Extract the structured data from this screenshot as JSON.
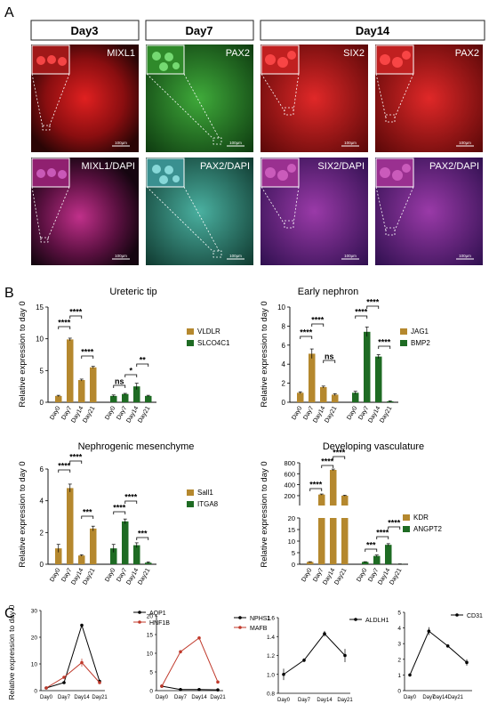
{
  "panel_letters": {
    "a": "A",
    "b": "B",
    "c": "C"
  },
  "colors": {
    "tan": "#b5882e",
    "green": "#1e6b23",
    "black": "#000000",
    "red": "#c0392b"
  },
  "panel_a": {
    "headers": [
      "Day3",
      "Day7",
      "Day14"
    ],
    "tiles": [
      {
        "label": "MIXL1",
        "scale": "100μm"
      },
      {
        "label": "PAX2",
        "scale": "100μm"
      },
      {
        "label": "SIX2",
        "scale": "100μm"
      },
      {
        "label": "PAX2",
        "scale": "100μm"
      },
      {
        "label": "MIXL1/DAPI",
        "scale": "100μm"
      },
      {
        "label": "PAX2/DAPI",
        "scale": "100μm"
      },
      {
        "label": "SIX2/DAPI",
        "scale": "100μm"
      },
      {
        "label": "PAX2/DAPI",
        "scale": "100μm"
      }
    ]
  },
  "chart_data": [
    {
      "type": "bar",
      "title": "Ureteric tip",
      "ylabel": "Relative expression to day 0",
      "ylim": [
        0,
        15
      ],
      "yticks": [
        "0",
        "5",
        "10",
        "15"
      ],
      "categories": [
        "Day0",
        "Day7",
        "Day14",
        "Day21"
      ],
      "series": [
        {
          "name": "VLDLR",
          "color": "#b5882e",
          "values": [
            1.0,
            9.9,
            3.5,
            5.5
          ],
          "errors": [
            0.1,
            0.2,
            0.15,
            0.15
          ]
        },
        {
          "name": "SLCO4C1",
          "color": "#1e6b23",
          "values": [
            1.0,
            1.3,
            2.5,
            1.0
          ],
          "errors": [
            0.15,
            0.1,
            0.5,
            0.1
          ]
        }
      ],
      "significance": [
        "****",
        "****",
        "****",
        "****",
        "ns",
        "*",
        "**"
      ]
    },
    {
      "type": "bar",
      "title": "Early nephron",
      "ylabel": "Relative expression to day 0",
      "ylim": [
        0,
        10
      ],
      "yticks": [
        "0",
        "2",
        "4",
        "6",
        "8",
        "10"
      ],
      "categories": [
        "Day0",
        "Day7",
        "Day14",
        "Day21"
      ],
      "series": [
        {
          "name": "JAG1",
          "color": "#b5882e",
          "values": [
            1.0,
            5.1,
            1.6,
            0.8
          ],
          "errors": [
            0.1,
            0.5,
            0.1,
            0.1
          ]
        },
        {
          "name": "BMP2",
          "color": "#1e6b23",
          "values": [
            1.0,
            7.4,
            4.8,
            0.1
          ],
          "errors": [
            0.15,
            0.5,
            0.2,
            0.05
          ]
        }
      ],
      "significance": [
        "****",
        "****",
        "ns",
        "****",
        "****",
        "****"
      ]
    },
    {
      "type": "bar",
      "title": "Nephrogenic mesenchyme",
      "ylabel": "Relative expression to day 0",
      "ylim": [
        0,
        6
      ],
      "yticks": [
        "0",
        "2",
        "4",
        "6"
      ],
      "categories": [
        "Day0",
        "Day7",
        "Day14",
        "Day21"
      ],
      "series": [
        {
          "name": "Sall1",
          "color": "#b5882e",
          "values": [
            1.0,
            4.8,
            0.55,
            2.25
          ],
          "errors": [
            0.25,
            0.25,
            0.05,
            0.15
          ]
        },
        {
          "name": "ITGA8",
          "color": "#1e6b23",
          "values": [
            1.0,
            2.7,
            1.2,
            0.1
          ],
          "errors": [
            0.25,
            0.15,
            0.15,
            0.05
          ]
        }
      ],
      "significance": [
        "****",
        "****",
        "***",
        "****",
        "****",
        "***"
      ]
    },
    {
      "type": "bar",
      "title": "Developing vasculature",
      "ylabel": "Relative expression to day 0",
      "broken_axis": true,
      "ylim_low": [
        0,
        20
      ],
      "ylim_high": [
        20,
        800
      ],
      "yticks": [
        "0",
        "5",
        "10",
        "15",
        "20",
        "200",
        "400",
        "600",
        "800"
      ],
      "categories": [
        "Day0",
        "Day7",
        "Day14",
        "Day21"
      ],
      "series": [
        {
          "name": "KDR",
          "color": "#b5882e",
          "values": [
            1.0,
            220,
            670,
            200
          ],
          "errors": [
            0.1,
            10,
            15,
            8
          ]
        },
        {
          "name": "ANGPT2",
          "color": "#1e6b23",
          "values": [
            1.0,
            3.6,
            8.4,
            0.1
          ],
          "errors": [
            0.1,
            0.4,
            0.5,
            0.05
          ]
        }
      ],
      "significance": [
        "****",
        "****",
        "****",
        "***",
        "****",
        "****"
      ]
    },
    {
      "type": "line",
      "ylabel": "Relative expression to day 0",
      "ylim": [
        0,
        30
      ],
      "yticks": [
        "0",
        "10",
        "20",
        "30"
      ],
      "categories": [
        "Day0",
        "Day7",
        "Day14",
        "Day21"
      ],
      "series": [
        {
          "name": "AQP1",
          "color": "#000000",
          "values": [
            1,
            3,
            24.5,
            3.5
          ],
          "errors": [
            0.2,
            0.3,
            0.5,
            0.4
          ]
        },
        {
          "name": "HNF1B",
          "color": "#c0392b",
          "values": [
            1,
            5,
            10.5,
            3
          ],
          "errors": [
            0.2,
            0.4,
            1.5,
            0.3
          ]
        }
      ]
    },
    {
      "type": "line",
      "ylim": [
        0,
        20
      ],
      "yticks": [
        "0",
        "5",
        "10",
        "15",
        "20"
      ],
      "categories": [
        "Day0",
        "Day7",
        "Day14",
        "Day21"
      ],
      "series": [
        {
          "name": "NPHS1",
          "color": "#000000",
          "values": [
            1.2,
            0.3,
            0.3,
            0.2
          ],
          "errors": [
            0.1,
            0.05,
            0.05,
            0.05
          ]
        },
        {
          "name": "MAFB",
          "color": "#c0392b",
          "values": [
            1.2,
            10.4,
            14.1,
            2.3
          ],
          "errors": [
            0.1,
            0.3,
            0.3,
            0.2
          ]
        }
      ]
    },
    {
      "type": "line",
      "ylim": [
        0.8,
        1.6
      ],
      "yticks": [
        "0.8",
        "1.0",
        "1.2",
        "1.4",
        "1.6"
      ],
      "categories": [
        "Day0",
        "Day7",
        "Day14",
        "Day21"
      ],
      "series": [
        {
          "name": "ALDLH1",
          "color": "#000000",
          "values": [
            1.0,
            1.15,
            1.43,
            1.2
          ],
          "errors": [
            0.06,
            0.02,
            0.03,
            0.07
          ]
        }
      ]
    },
    {
      "type": "line",
      "ylim": [
        0,
        5
      ],
      "yticks": [
        "0",
        "1",
        "2",
        "3",
        "4",
        "5"
      ],
      "categories": [
        "Day0",
        "Day7",
        "Day14Day21",
        ""
      ],
      "series": [
        {
          "name": "CD31",
          "color": "#000000",
          "values": [
            1.0,
            3.8,
            2.85,
            1.8
          ],
          "errors": [
            0.08,
            0.25,
            0.1,
            0.2
          ]
        }
      ]
    }
  ]
}
